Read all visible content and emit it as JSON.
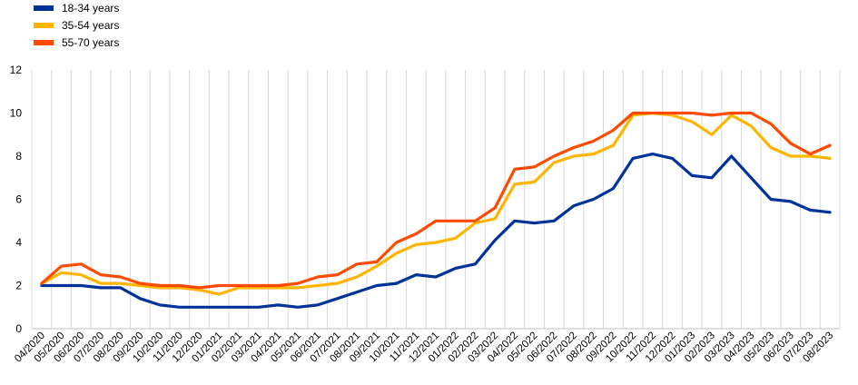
{
  "chart_data": {
    "type": "line",
    "title": "",
    "xlabel": "",
    "ylabel": "",
    "ylim": [
      0,
      12
    ],
    "yticks": [
      0,
      2,
      4,
      6,
      8,
      10,
      12
    ],
    "grid": "vertical",
    "legend_position": "top-left",
    "categories": [
      "04/2020",
      "05/2020",
      "06/2020",
      "07/2020",
      "08/2020",
      "09/2020",
      "10/2020",
      "11/2020",
      "12/2020",
      "01/2021",
      "02/2021",
      "03/2021",
      "04/2021",
      "05/2021",
      "06/2021",
      "07/2021",
      "08/2021",
      "09/2021",
      "10/2021",
      "11/2021",
      "12/2021",
      "01/2022",
      "02/2022",
      "03/2022",
      "04/2022",
      "05/2022",
      "06/2022",
      "07/2022",
      "08/2022",
      "09/2022",
      "10/2022",
      "11/2022",
      "12/2022",
      "01/2023",
      "02/2023",
      "03/2023",
      "04/2023",
      "05/2023",
      "06/2023",
      "07/2023",
      "08/2023"
    ],
    "series": [
      {
        "name": "18-34 years",
        "color": "#003399",
        "values": [
          2.0,
          2.0,
          2.0,
          1.9,
          1.9,
          1.4,
          1.1,
          1.0,
          1.0,
          1.0,
          1.0,
          1.0,
          1.1,
          1.0,
          1.1,
          1.4,
          1.7,
          2.0,
          2.1,
          2.5,
          2.4,
          2.8,
          3.0,
          4.1,
          5.0,
          4.9,
          5.0,
          5.7,
          6.0,
          6.5,
          7.9,
          8.1,
          7.9,
          7.1,
          7.0,
          8.0,
          7.0,
          6.0,
          5.9,
          5.5,
          5.4
        ]
      },
      {
        "name": "35-54 years",
        "color": "#FFB400",
        "values": [
          2.1,
          2.6,
          2.5,
          2.1,
          2.1,
          2.0,
          1.9,
          1.9,
          1.8,
          1.6,
          1.9,
          1.9,
          1.9,
          1.9,
          2.0,
          2.1,
          2.4,
          2.9,
          3.5,
          3.9,
          4.0,
          4.2,
          4.9,
          5.1,
          6.7,
          6.8,
          7.7,
          8.0,
          8.1,
          8.5,
          9.9,
          10.0,
          9.9,
          9.6,
          9.0,
          9.9,
          9.4,
          8.4,
          8.0,
          8.0,
          7.9
        ]
      },
      {
        "name": "55-70 years",
        "color": "#FF4B00",
        "values": [
          2.1,
          2.9,
          3.0,
          2.5,
          2.4,
          2.1,
          2.0,
          2.0,
          1.9,
          2.0,
          2.0,
          2.0,
          2.0,
          2.1,
          2.4,
          2.5,
          3.0,
          3.1,
          4.0,
          4.4,
          5.0,
          5.0,
          5.0,
          5.6,
          7.4,
          7.5,
          8.0,
          8.4,
          8.7,
          9.2,
          10.0,
          10.0,
          10.0,
          10.0,
          9.9,
          10.0,
          10.0,
          9.5,
          8.6,
          8.1,
          8.5
        ]
      }
    ]
  }
}
